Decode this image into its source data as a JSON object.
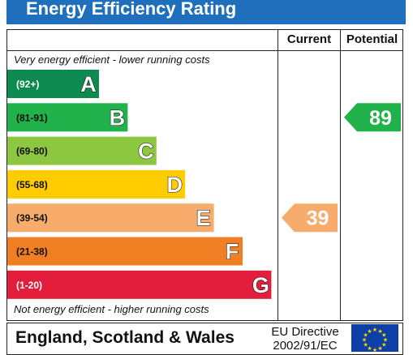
{
  "title": "Energy Efficiency Rating",
  "columns": {
    "current": "Current",
    "potential": "Potential"
  },
  "top_caption": "Very energy efficient - lower running costs",
  "bottom_caption": "Not energy efficient - higher running costs",
  "footer": {
    "region": "England, Scotland & Wales",
    "directive_line1": "EU Directive",
    "directive_line2": "2002/91/EC"
  },
  "colors": {
    "header": "#1f6fbd",
    "A": "#0c8a4f",
    "B": "#21b24b",
    "C": "#8dc63f",
    "D": "#ffcc00",
    "E": "#f7ac6b",
    "F": "#f07f24",
    "G": "#e31d3c"
  },
  "chart_data": {
    "type": "bar",
    "bands": [
      {
        "letter": "A",
        "range": "(92+)"
      },
      {
        "letter": "B",
        "range": "(81-91)"
      },
      {
        "letter": "C",
        "range": "(69-80)"
      },
      {
        "letter": "D",
        "range": "(55-68)"
      },
      {
        "letter": "E",
        "range": "(39-54)"
      },
      {
        "letter": "F",
        "range": "(21-38)"
      },
      {
        "letter": "G",
        "range": "(1-20)"
      }
    ],
    "current": {
      "value": 39,
      "band": "E"
    },
    "potential": {
      "value": 89,
      "band": "B"
    }
  }
}
